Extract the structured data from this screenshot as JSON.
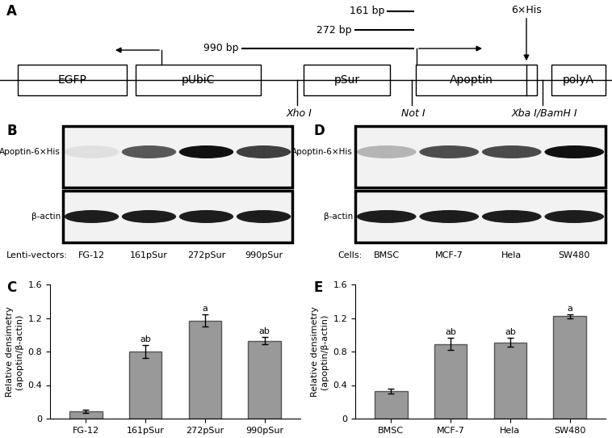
{
  "diagram": {
    "panel": "A",
    "boxes": [
      "EGFP",
      "pUbiC",
      "pSur",
      "Apoptin",
      "polyA"
    ],
    "tag": "6×His",
    "fragments": [
      "161 bp",
      "272 bp",
      "990 bp"
    ],
    "sites": [
      "Xho I",
      "Not I",
      "Xba I/BamH I"
    ]
  },
  "blots": [
    {
      "panel": "B",
      "rows": [
        "Apoptin-6×His",
        "β-actin"
      ],
      "lanes_label": "Lenti-vectors:",
      "lanes": [
        "FG-12",
        "161pSur",
        "272pSur",
        "990pSur"
      ]
    },
    {
      "panel": "D",
      "rows": [
        "Apoptin-6×His",
        "β-actin"
      ],
      "lanes_label": "Cells:",
      "lanes": [
        "BMSC",
        "MCF-7",
        "Hela",
        "SW480"
      ]
    }
  ],
  "chart_data": [
    {
      "type": "bar",
      "title": "C",
      "categories": [
        "FG-12",
        "161pSur",
        "272pSur",
        "990pSur"
      ],
      "values": [
        0.09,
        0.8,
        1.17,
        0.93
      ],
      "errors": [
        0.02,
        0.08,
        0.07,
        0.04
      ],
      "annotations": [
        null,
        "ab",
        "a",
        "ab"
      ],
      "y_label": "Relative densimetry\n(apoptin/β-actin)",
      "color": "#999999",
      "ylim": [
        0,
        1.6
      ],
      "yticks": [
        0,
        0.4,
        0.8,
        1.2,
        1.6
      ]
    },
    {
      "type": "bar",
      "title": "E",
      "categories": [
        "BMSC",
        "MCF-7",
        "Hela",
        "SW480"
      ],
      "values": [
        0.33,
        0.89,
        0.91,
        1.22
      ],
      "errors": [
        0.03,
        0.07,
        0.05,
        0.02
      ],
      "annotations": [
        null,
        "ab",
        "ab",
        "a"
      ],
      "y_label": "Relative densimetry\n(apoptin/β-actin)",
      "color": "#999999",
      "ylim": [
        0,
        1.6
      ],
      "yticks": [
        0,
        0.4,
        0.8,
        1.2,
        1.6
      ]
    }
  ]
}
